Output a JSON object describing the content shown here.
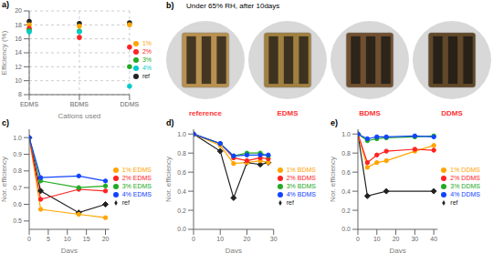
{
  "chart_data": [
    {
      "type": "scatter",
      "annotations": [
        "a)"
      ],
      "xlabel": "Cations used",
      "ylabel": "Efficiency (%)",
      "categories": [
        "EDMS",
        "BDMS",
        "DDMS"
      ],
      "ylim": [
        8,
        20
      ],
      "yticks": [
        8,
        10,
        12,
        14,
        16,
        18,
        20
      ],
      "grid": true,
      "legend": "right",
      "series": [
        {
          "name": "ref",
          "color": "#222222",
          "marker": "circle",
          "values": [
            18.5,
            18.2,
            18.3
          ]
        },
        {
          "name": "1%",
          "color": "#FFA500",
          "marker": "circle",
          "values": [
            18.0,
            17.8,
            18.0
          ]
        },
        {
          "name": "2%",
          "color": "#FF2222",
          "marker": "circle",
          "values": [
            17.5,
            16.2,
            14.8
          ]
        },
        {
          "name": "3%",
          "color": "#22AA22",
          "marker": "circle",
          "values": [
            17.2,
            17.1,
            12.0
          ]
        },
        {
          "name": "4%",
          "color": "#00CCCC",
          "marker": "circle",
          "values": [
            17.0,
            17.0,
            9.2
          ]
        }
      ]
    },
    {
      "type": "image",
      "annotations": [
        "b)"
      ],
      "title": "Under 65% RH, after 10days",
      "categories": [
        "reference",
        "EDMS",
        "BDMS",
        "DDMS"
      ],
      "colors": [
        "#b89050",
        "#a08040",
        "#705030",
        "#604828"
      ],
      "color": "#FF3333"
    },
    {
      "type": "line",
      "annotations": [
        "c)"
      ],
      "xlabel": "Days",
      "ylabel": "Nor. efficiency",
      "xlim": [
        0,
        21
      ],
      "xticks": [
        0,
        5,
        10,
        15,
        20
      ],
      "ylim": [
        0.45,
        1.05
      ],
      "yticks": [
        0.5,
        0.6,
        0.7,
        0.8,
        0.9,
        {
          "value": 1,
          "label": "1.0"
        }
      ],
      "grid": false,
      "legend": "right",
      "series": [
        {
          "name": "ref",
          "color": "#222222",
          "marker": "diamond",
          "x": [
            0,
            3,
            13,
            20
          ],
          "values": [
            1.0,
            0.68,
            0.55,
            0.6
          ]
        },
        {
          "name": "1% EDMS",
          "color": "#FFA500",
          "marker": "circle",
          "x": [
            0,
            3,
            13,
            20
          ],
          "values": [
            1.0,
            0.57,
            0.54,
            0.52
          ]
        },
        {
          "name": "2% EDMS",
          "color": "#FF2222",
          "marker": "circle",
          "x": [
            0,
            3,
            13,
            20
          ],
          "values": [
            1.0,
            0.63,
            0.69,
            0.68
          ]
        },
        {
          "name": "3% EDMS",
          "color": "#22AA22",
          "marker": "circle",
          "x": [
            0,
            3,
            13,
            20
          ],
          "values": [
            1.0,
            0.74,
            0.7,
            0.71
          ]
        },
        {
          "name": "4% EDMS",
          "color": "#1144FF",
          "marker": "circle",
          "x": [
            0,
            3,
            13,
            20
          ],
          "values": [
            1.0,
            0.76,
            0.77,
            0.74
          ]
        }
      ]
    },
    {
      "type": "line",
      "annotations": [
        "d)"
      ],
      "xlabel": "Days",
      "ylabel": "Nor. efficiency",
      "xlim": [
        0,
        30
      ],
      "xticks": [
        0,
        10,
        20,
        30
      ],
      "ylim": [
        0.0,
        1.05
      ],
      "yticks": [
        {
          "value": 0,
          "label": "0.0"
        },
        0.2,
        0.4,
        0.6,
        0.8,
        {
          "value": 1,
          "label": "1.0"
        }
      ],
      "grid": false,
      "legend": "right",
      "series": [
        {
          "name": "ref",
          "color": "#222222",
          "marker": "diamond",
          "x": [
            0,
            10,
            15,
            20,
            25,
            28
          ],
          "values": [
            1.0,
            0.82,
            0.33,
            0.7,
            0.68,
            0.7
          ]
        },
        {
          "name": "1% BDMS",
          "color": "#FFA500",
          "marker": "circle",
          "x": [
            0,
            10,
            15,
            20,
            25,
            28
          ],
          "values": [
            1.0,
            0.88,
            0.69,
            0.7,
            0.72,
            0.7
          ]
        },
        {
          "name": "2% BDMS",
          "color": "#FF2222",
          "marker": "circle",
          "x": [
            0,
            10,
            15,
            20,
            25,
            28
          ],
          "values": [
            1.0,
            0.9,
            0.75,
            0.72,
            0.75,
            0.74
          ]
        },
        {
          "name": "3% BDMS",
          "color": "#22AA22",
          "marker": "circle",
          "x": [
            0,
            10,
            15,
            20,
            25,
            28
          ],
          "values": [
            1.0,
            0.9,
            0.77,
            0.8,
            0.8,
            0.77
          ]
        },
        {
          "name": "4% BDMS",
          "color": "#1144FF",
          "marker": "circle",
          "x": [
            0,
            10,
            15,
            20,
            25,
            28
          ],
          "values": [
            1.0,
            0.9,
            0.77,
            0.78,
            0.78,
            0.78
          ]
        }
      ]
    },
    {
      "type": "line",
      "annotations": [
        "e)"
      ],
      "xlabel": "Days",
      "ylabel": "Nor. efficiency",
      "xlim": [
        0,
        42
      ],
      "xticks": [
        0,
        10,
        20,
        30,
        40
      ],
      "ylim": [
        0.0,
        1.05
      ],
      "yticks": [
        {
          "value": 0,
          "label": "0.0"
        },
        0.2,
        0.4,
        0.6,
        0.8,
        {
          "value": 1,
          "label": "1.0"
        }
      ],
      "grid": false,
      "legend": "right",
      "series": [
        {
          "name": "ref",
          "color": "#222222",
          "marker": "diamond",
          "x": [
            0,
            5,
            15,
            40
          ],
          "values": [
            1.0,
            0.35,
            0.4,
            0.4
          ]
        },
        {
          "name": "1% DDMS",
          "color": "#FFA500",
          "marker": "circle",
          "x": [
            0,
            5,
            10,
            15,
            30,
            40
          ],
          "values": [
            1.0,
            0.65,
            0.7,
            0.72,
            0.82,
            0.88
          ]
        },
        {
          "name": "2% DDMS",
          "color": "#FF2222",
          "marker": "circle",
          "x": [
            0,
            5,
            10,
            15,
            30,
            40
          ],
          "values": [
            1.0,
            0.7,
            0.78,
            0.82,
            0.84,
            0.83
          ]
        },
        {
          "name": "3% DDMS",
          "color": "#22AA22",
          "marker": "circle",
          "x": [
            0,
            5,
            10,
            15,
            30,
            40
          ],
          "values": [
            1.0,
            0.93,
            0.95,
            0.96,
            0.97,
            0.98
          ]
        },
        {
          "name": "4% DDMS",
          "color": "#1144FF",
          "marker": "circle",
          "x": [
            0,
            5,
            10,
            15,
            30,
            40
          ],
          "values": [
            1.0,
            0.95,
            0.97,
            0.97,
            0.98,
            0.97
          ]
        }
      ]
    }
  ]
}
